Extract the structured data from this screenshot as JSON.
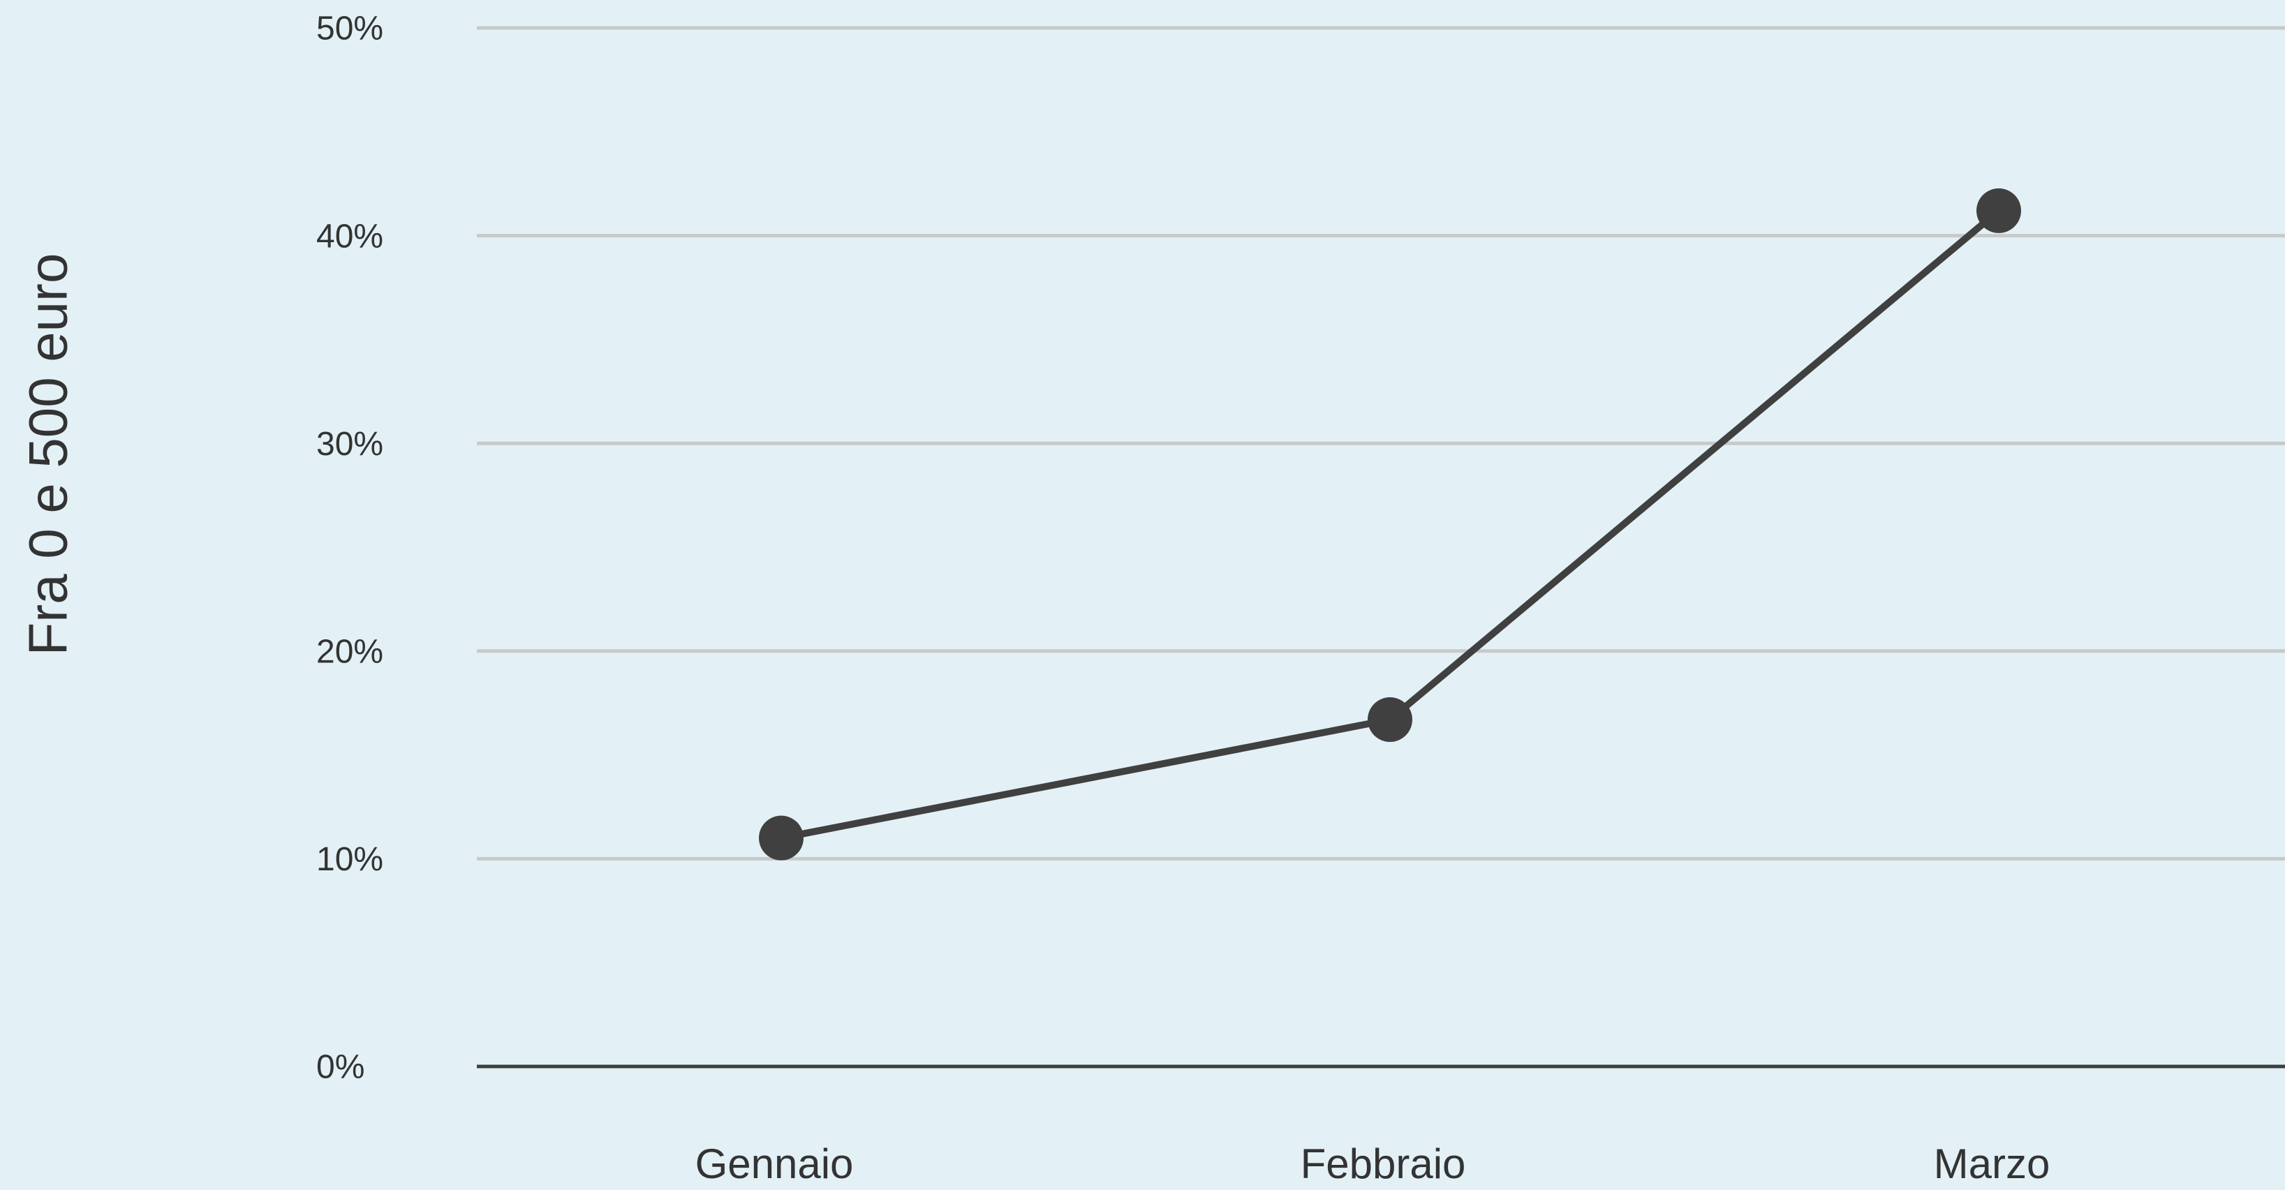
{
  "chart_data": {
    "type": "line",
    "ylabel": "Fra 0 e 500 euro",
    "categories": [
      "Gennaio",
      "Febbraio",
      "Marzo"
    ],
    "values": [
      11,
      16.7,
      41.2
    ],
    "color": "#404040",
    "ylim": [
      0,
      50
    ],
    "yticks": [
      {
        "value": 0,
        "label": "0%"
      },
      {
        "value": 10,
        "label": "10%"
      },
      {
        "value": 20,
        "label": "20%"
      },
      {
        "value": 30,
        "label": "30%"
      },
      {
        "value": 40,
        "label": "40%"
      },
      {
        "value": 50,
        "label": "50%"
      }
    ],
    "grid": true
  }
}
